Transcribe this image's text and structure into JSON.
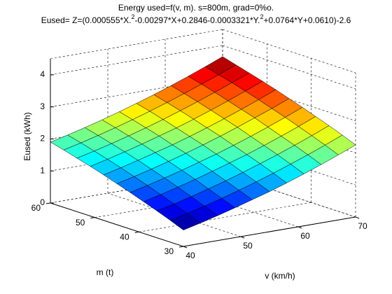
{
  "chart_data": {
    "type": "surface",
    "title": "Energy used=f(v, m). s=800m, grad=0%o.",
    "subtitle": [
      "Eused= Z=(0.000555*X.",
      "2",
      "-0.00297*X+0.2846-0.0003321*Y.",
      "2",
      "+0.0764*Y+0.0610)-2.6"
    ],
    "xlabel": "v (km/h)",
    "ylabel": "m (t)",
    "zlabel": "Eused (kWh)",
    "x": [
      40,
      43,
      46,
      49,
      52,
      55,
      58,
      61,
      64,
      67,
      70
    ],
    "y": [
      30,
      33,
      36,
      39,
      42,
      45,
      48,
      51,
      54,
      57,
      60
    ],
    "z": [
      [
        0.51,
        0.64,
        0.78,
        0.93,
        1.09,
        1.25,
        1.43,
        1.62,
        1.82,
        2.03,
        2.25
      ],
      [
        0.68,
        0.8,
        0.94,
        1.09,
        1.25,
        1.42,
        1.6,
        1.79,
        1.99,
        2.2,
        2.42
      ],
      [
        0.84,
        0.96,
        1.1,
        1.25,
        1.41,
        1.58,
        1.76,
        1.95,
        2.15,
        2.36,
        2.58
      ],
      [
        0.99,
        1.12,
        1.26,
        1.41,
        1.57,
        1.74,
        1.91,
        2.1,
        2.3,
        2.51,
        2.73
      ],
      [
        1.14,
        1.27,
        1.41,
        1.56,
        1.72,
        1.88,
        2.06,
        2.25,
        2.45,
        2.66,
        2.88
      ],
      [
        1.28,
        1.41,
        1.55,
        1.7,
        1.86,
        2.03,
        2.21,
        2.4,
        2.6,
        2.8,
        3.02
      ],
      [
        1.42,
        1.55,
        1.69,
        1.84,
        1.99,
        2.16,
        2.34,
        2.53,
        2.73,
        2.94,
        3.16
      ],
      [
        1.55,
        1.68,
        1.82,
        1.97,
        2.13,
        2.29,
        2.47,
        2.66,
        2.86,
        3.07,
        3.29
      ],
      [
        1.67,
        1.8,
        1.94,
        2.09,
        2.25,
        2.42,
        2.6,
        2.79,
        2.99,
        3.2,
        3.41
      ],
      [
        1.79,
        1.92,
        2.06,
        2.21,
        2.37,
        2.54,
        2.72,
        2.91,
        3.11,
        3.31,
        3.53
      ],
      [
        1.9,
        2.03,
        2.17,
        2.32,
        2.48,
        2.65,
        2.83,
        3.02,
        3.22,
        3.43,
        3.65
      ]
    ],
    "colormap": "jet",
    "xlim": [
      40,
      70
    ],
    "ylim": [
      30,
      60
    ],
    "zlim": [
      0,
      4.5
    ],
    "xticks": [
      40,
      50,
      60,
      70
    ],
    "yticks": [
      30,
      40,
      50,
      60
    ],
    "zticks": [
      0,
      1,
      2,
      3,
      4
    ],
    "grid": true
  }
}
